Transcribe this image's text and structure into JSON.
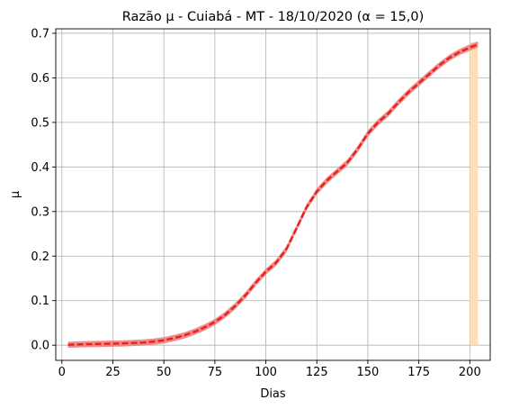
{
  "chart_data": {
    "type": "line",
    "title": "Razão μ - Cuiabá - MT - 18/10/2020 (α = 15,0)",
    "xlabel": "Dias",
    "ylabel": "μ",
    "xlim": [
      -3,
      210
    ],
    "ylim": [
      -0.034,
      0.71
    ],
    "xticks": [
      0,
      25,
      50,
      75,
      100,
      125,
      150,
      175,
      200
    ],
    "yticks": [
      0.0,
      0.1,
      0.2,
      0.3,
      0.4,
      0.5,
      0.6,
      0.7
    ],
    "ytick_labels": [
      "0.0",
      "0.1",
      "0.2",
      "0.3",
      "0.4",
      "0.5",
      "0.6",
      "0.7"
    ],
    "grid": true,
    "shaded_region": {
      "x_start": 200,
      "x_end": 204,
      "color": "#ffdfb8"
    },
    "series": [
      {
        "color": "#e8211a",
        "band_color": "#f08080",
        "band_halfwidth": 0.007,
        "x": [
          3,
          10,
          20,
          30,
          40,
          45,
          50,
          55,
          60,
          65,
          70,
          75,
          80,
          85,
          90,
          95,
          100,
          105,
          110,
          115,
          120,
          125,
          130,
          135,
          140,
          145,
          150,
          155,
          160,
          165,
          170,
          175,
          180,
          185,
          190,
          195,
          200,
          204
        ],
        "values": [
          0.001,
          0.002,
          0.003,
          0.004,
          0.006,
          0.008,
          0.011,
          0.016,
          0.022,
          0.03,
          0.04,
          0.052,
          0.068,
          0.088,
          0.112,
          0.14,
          0.165,
          0.185,
          0.215,
          0.262,
          0.31,
          0.345,
          0.37,
          0.39,
          0.41,
          0.44,
          0.475,
          0.5,
          0.52,
          0.545,
          0.568,
          0.588,
          0.608,
          0.628,
          0.645,
          0.658,
          0.668,
          0.675
        ]
      }
    ]
  }
}
